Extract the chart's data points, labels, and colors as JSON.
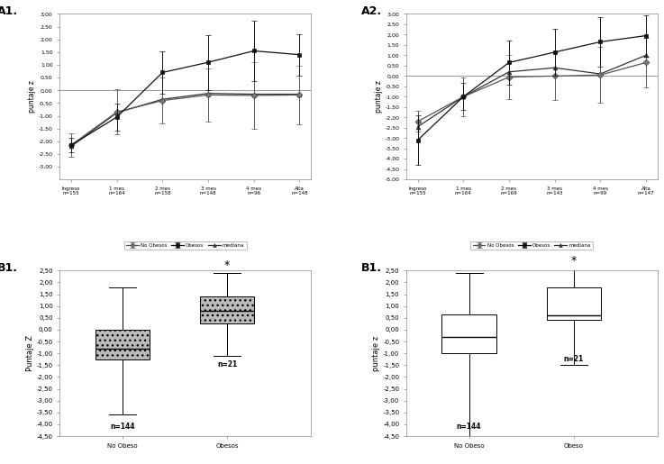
{
  "A1": {
    "title": "A1.",
    "xlabel_ticks": [
      "Ingreso\nn=155",
      "1 mes\nn=164",
      "2 mes\nn=158",
      "3 mes\nn=148",
      "4 mes\nn=96",
      "Alta\nn=148"
    ],
    "ylabel": "puntaje z",
    "ylim": [
      -3.5,
      3.0
    ],
    "yticks": [
      -3.0,
      -2.5,
      -2.0,
      -1.5,
      -1.0,
      -0.5,
      0.0,
      0.5,
      1.0,
      1.5,
      2.0,
      2.5,
      3.0
    ],
    "no_obesos_y": [
      -2.15,
      -0.85,
      -0.4,
      -0.18,
      -0.2,
      -0.18
    ],
    "no_obesos_err": [
      0.45,
      0.88,
      0.9,
      1.05,
      1.3,
      1.15
    ],
    "obesos_y": [
      -2.15,
      -1.05,
      0.7,
      1.1,
      1.55,
      1.4
    ],
    "obesos_err": [
      0.28,
      0.52,
      0.82,
      1.08,
      1.18,
      0.82
    ],
    "mediana_y": [
      -2.2,
      -0.88,
      -0.35,
      -0.12,
      -0.15,
      -0.15
    ],
    "legend": [
      "No Obesos",
      "Obesos",
      "mediana"
    ]
  },
  "A2": {
    "title": "A2.",
    "xlabel_ticks": [
      "Ingreso\nn=155",
      "1 mes\nn=164",
      "2 mes\nn=169",
      "3 mes\nn=143",
      "4 mes\nn=99",
      "Alta\nn=147"
    ],
    "ylabel": "puntaje z",
    "ylim": [
      -5.0,
      3.0
    ],
    "yticks": [
      -5.0,
      -4.5,
      -4.0,
      -3.5,
      -3.0,
      -2.5,
      -2.0,
      -1.5,
      -1.0,
      -0.5,
      0.0,
      0.5,
      1.0,
      1.5,
      2.0,
      2.5,
      3.0
    ],
    "no_obesos_y": [
      -2.2,
      -1.0,
      -0.05,
      0.0,
      0.05,
      0.65
    ],
    "no_obesos_err": [
      0.5,
      0.95,
      1.05,
      1.15,
      1.35,
      1.2
    ],
    "obesos_y": [
      -3.1,
      -1.0,
      0.65,
      1.15,
      1.65,
      1.95
    ],
    "obesos_err": [
      1.2,
      0.65,
      1.05,
      1.15,
      1.2,
      1.0
    ],
    "mediana_y": [
      -2.45,
      -1.0,
      0.2,
      0.4,
      0.1,
      1.0
    ],
    "legend": [
      "No Obesos",
      "Obesos",
      "mediana"
    ]
  },
  "B1": {
    "title": "B1.",
    "ylabel": "Puntaje Z",
    "ylim": [
      -4.5,
      2.5
    ],
    "yticks": [
      -4.5,
      -4.0,
      -3.5,
      -3.0,
      -2.5,
      -2.0,
      -1.5,
      -1.0,
      -0.5,
      0.0,
      0.5,
      1.0,
      1.5,
      2.0,
      2.5
    ],
    "categories": [
      "No Obeso",
      "Obesos"
    ],
    "no_obeso": {
      "median": -0.8,
      "q1": -1.25,
      "q3": 0.0,
      "whislo": -3.6,
      "whishi": 1.8
    },
    "obeso": {
      "median": 0.8,
      "q1": 0.28,
      "q3": 1.4,
      "whislo": -1.1,
      "whishi": 2.4
    },
    "n_no_obeso": "n=144",
    "n_obeso": "n=21",
    "star": "*",
    "box_color": "#bbbbbb",
    "hatch": "..."
  },
  "B2": {
    "title": "B1.",
    "ylabel": "puntaje z",
    "ylim": [
      -4.5,
      2.5
    ],
    "yticks": [
      -4.5,
      -4.0,
      -3.5,
      -3.0,
      -2.5,
      -2.0,
      -1.5,
      -1.0,
      -0.5,
      0.0,
      0.5,
      1.0,
      1.5,
      2.0,
      2.5
    ],
    "categories": [
      "No Obeso",
      "Obeso"
    ],
    "no_obeso": {
      "median": -0.3,
      "q1": -1.0,
      "q3": 0.65,
      "whislo": -4.5,
      "whishi": 2.4
    },
    "obeso": {
      "median": 0.6,
      "q1": 0.4,
      "q3": 1.8,
      "whislo": -1.5,
      "whishi": 2.6
    },
    "n_no_obeso": "n=144",
    "n_obeso": "n=21",
    "star": "*",
    "box_color": "#ffffff",
    "hatch": ""
  },
  "bg_color": "#ffffff"
}
